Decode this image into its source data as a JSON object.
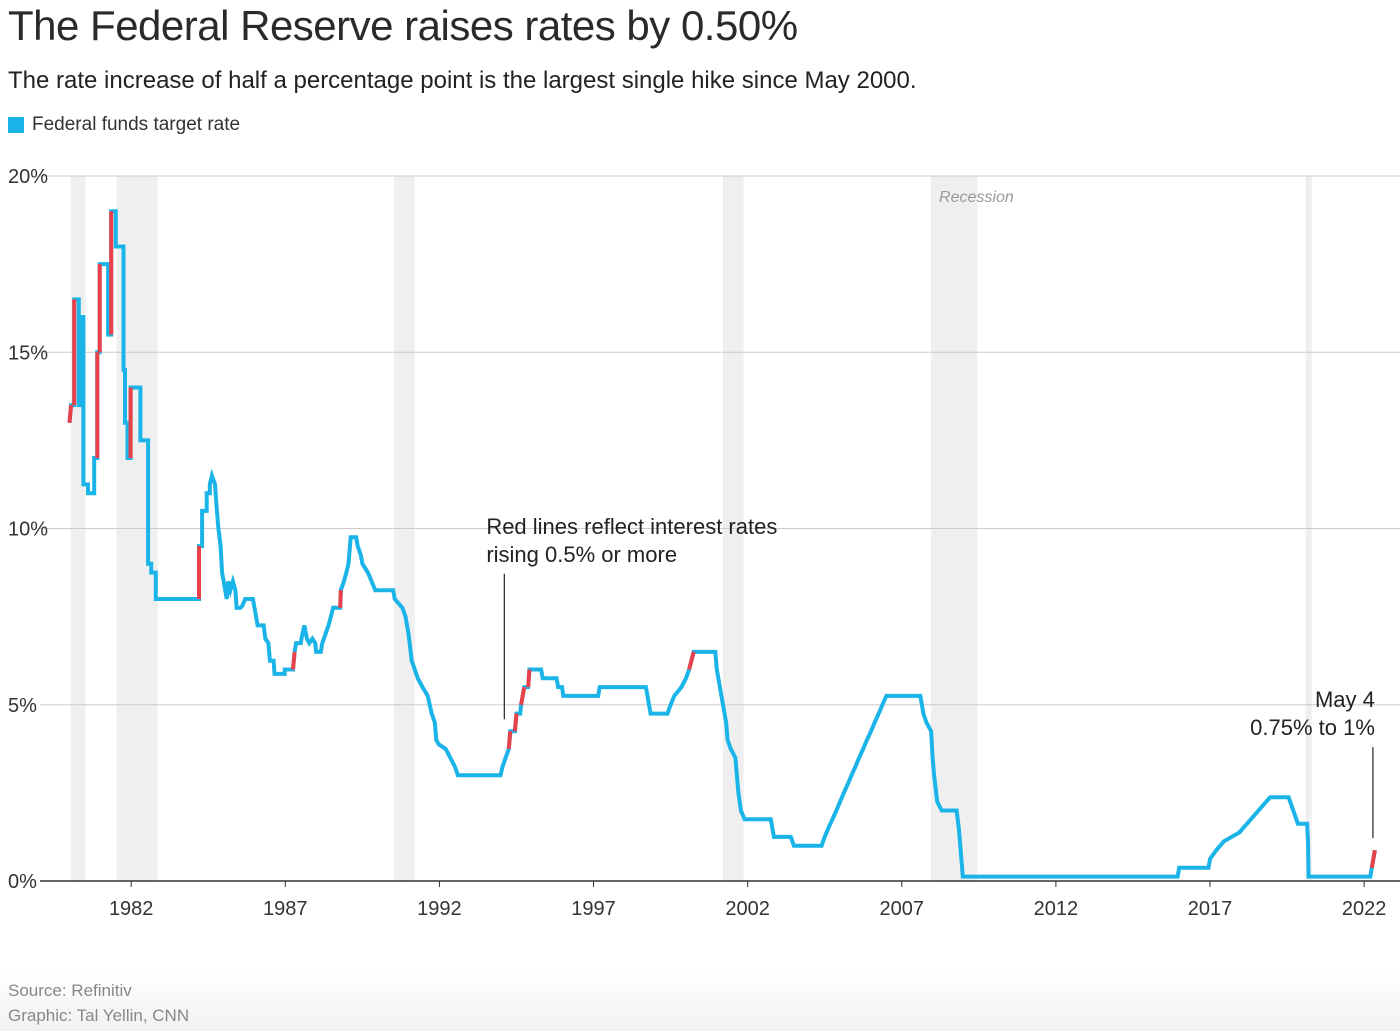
{
  "header": {
    "title": "The Federal Reserve raises rates by 0.50%",
    "subtitle": "The rate increase of half a percentage point is the largest single hike since May 2000.",
    "legend_label": "Federal funds target rate"
  },
  "footer": {
    "source": "Source: Refinitiv",
    "credit": "Graphic: Tal Yellin, CNN"
  },
  "colors": {
    "line": "#1ab4e8",
    "hike": "#e8414a",
    "recession": "#efefef",
    "grid": "#cccccc"
  },
  "chart_data": {
    "type": "line",
    "title": "The Federal Reserve raises rates by 0.50%",
    "xlim": [
      1979.95,
      2022.45
    ],
    "ylim": [
      0,
      20
    ],
    "x_ticks": [
      1982,
      1987,
      1992,
      1997,
      2002,
      2007,
      2012,
      2017,
      2022
    ],
    "x_tick_labels": [
      "1982",
      "1987",
      "1992",
      "1997",
      "2002",
      "2007",
      "2012",
      "2017",
      "2022"
    ],
    "y_ticks": [
      0,
      5,
      10,
      15,
      20
    ],
    "y_tick_labels": [
      "0%",
      "5%",
      "10%",
      "15%",
      "20%"
    ],
    "grid": true,
    "legend_position": "top-left",
    "recession_label": "Recession",
    "recessions": [
      [
        1980.04,
        1980.52
      ],
      [
        1981.53,
        1982.86
      ],
      [
        1990.53,
        1991.2
      ],
      [
        2001.2,
        2001.87
      ],
      [
        2007.95,
        2009.45
      ],
      [
        2020.1,
        2020.3
      ]
    ],
    "series": [
      {
        "name": "Federal funds target rate",
        "points": [
          [
            1980.0,
            13.0
          ],
          [
            1980.05,
            13.5
          ],
          [
            1980.15,
            13.5
          ],
          [
            1980.15,
            16.5
          ],
          [
            1980.3,
            16.5
          ],
          [
            1980.3,
            13.5
          ],
          [
            1980.4,
            13.5
          ],
          [
            1980.4,
            16.0
          ],
          [
            1980.45,
            16.0
          ],
          [
            1980.45,
            11.25
          ],
          [
            1980.6,
            11.25
          ],
          [
            1980.6,
            11.0
          ],
          [
            1980.8,
            11.0
          ],
          [
            1980.8,
            12.0
          ],
          [
            1980.9,
            12.0
          ],
          [
            1980.9,
            15.0
          ],
          [
            1980.98,
            15.0
          ],
          [
            1980.98,
            17.5
          ],
          [
            1981.25,
            17.5
          ],
          [
            1981.25,
            15.5
          ],
          [
            1981.35,
            15.5
          ],
          [
            1981.35,
            19.0
          ],
          [
            1981.5,
            19.0
          ],
          [
            1981.5,
            18.0
          ],
          [
            1981.75,
            18.0
          ],
          [
            1981.75,
            14.5
          ],
          [
            1981.8,
            14.5
          ],
          [
            1981.8,
            13.0
          ],
          [
            1981.88,
            13.0
          ],
          [
            1981.88,
            12.0
          ],
          [
            1981.98,
            12.0
          ],
          [
            1981.98,
            14.0
          ],
          [
            1982.3,
            14.0
          ],
          [
            1982.3,
            12.5
          ],
          [
            1982.55,
            12.5
          ],
          [
            1982.55,
            9.0
          ],
          [
            1982.65,
            9.0
          ],
          [
            1982.65,
            8.75
          ],
          [
            1982.8,
            8.75
          ],
          [
            1982.8,
            8.0
          ],
          [
            1984.2,
            8.0
          ],
          [
            1984.2,
            9.5
          ],
          [
            1984.3,
            9.5
          ],
          [
            1984.3,
            10.5
          ],
          [
            1984.45,
            10.5
          ],
          [
            1984.45,
            11.0
          ],
          [
            1984.55,
            11.0
          ],
          [
            1984.55,
            11.25
          ],
          [
            1984.62,
            11.5
          ],
          [
            1984.72,
            11.25
          ],
          [
            1984.78,
            10.5
          ],
          [
            1984.83,
            10.0
          ],
          [
            1984.9,
            9.5
          ],
          [
            1984.95,
            8.75
          ],
          [
            1985.0,
            8.5
          ],
          [
            1985.05,
            8.25
          ],
          [
            1985.1,
            8.0
          ],
          [
            1985.15,
            8.5
          ],
          [
            1985.22,
            8.25
          ],
          [
            1985.3,
            8.5
          ],
          [
            1985.38,
            8.25
          ],
          [
            1985.42,
            7.75
          ],
          [
            1985.55,
            7.75
          ],
          [
            1985.6,
            7.8
          ],
          [
            1985.7,
            8.0
          ],
          [
            1985.95,
            8.0
          ],
          [
            1986.0,
            7.75
          ],
          [
            1986.1,
            7.25
          ],
          [
            1986.3,
            7.25
          ],
          [
            1986.35,
            6.875
          ],
          [
            1986.45,
            6.75
          ],
          [
            1986.5,
            6.25
          ],
          [
            1986.62,
            6.25
          ],
          [
            1986.65,
            5.875
          ],
          [
            1986.98,
            5.875
          ],
          [
            1986.98,
            6.0
          ],
          [
            1987.25,
            6.0
          ],
          [
            1987.3,
            6.5
          ],
          [
            1987.35,
            6.75
          ],
          [
            1987.5,
            6.75
          ],
          [
            1987.55,
            7.0
          ],
          [
            1987.62,
            7.25
          ],
          [
            1987.7,
            6.875
          ],
          [
            1987.78,
            6.75
          ],
          [
            1987.88,
            6.875
          ],
          [
            1987.97,
            6.75
          ],
          [
            1988.0,
            6.5
          ],
          [
            1988.15,
            6.5
          ],
          [
            1988.2,
            6.75
          ],
          [
            1988.3,
            7.0
          ],
          [
            1988.4,
            7.25
          ],
          [
            1988.48,
            7.5
          ],
          [
            1988.55,
            7.75
          ],
          [
            1988.65,
            7.75
          ],
          [
            1988.78,
            7.75
          ],
          [
            1988.8,
            8.25
          ],
          [
            1988.9,
            8.5
          ],
          [
            1988.98,
            8.75
          ],
          [
            1989.05,
            9.0
          ],
          [
            1989.12,
            9.75
          ],
          [
            1989.3,
            9.75
          ],
          [
            1989.35,
            9.5
          ],
          [
            1989.45,
            9.25
          ],
          [
            1989.5,
            9.0
          ],
          [
            1989.68,
            8.75
          ],
          [
            1989.8,
            8.5
          ],
          [
            1989.92,
            8.25
          ],
          [
            1990.5,
            8.25
          ],
          [
            1990.55,
            8.0
          ],
          [
            1990.8,
            7.75
          ],
          [
            1990.9,
            7.5
          ],
          [
            1991.0,
            7.0
          ],
          [
            1991.1,
            6.25
          ],
          [
            1991.3,
            5.75
          ],
          [
            1991.45,
            5.5
          ],
          [
            1991.62,
            5.25
          ],
          [
            1991.75,
            4.75
          ],
          [
            1991.85,
            4.5
          ],
          [
            1991.9,
            4.0
          ],
          [
            1991.98,
            3.875
          ],
          [
            1992.2,
            3.75
          ],
          [
            1992.35,
            3.5
          ],
          [
            1992.5,
            3.25
          ],
          [
            1992.6,
            3.0
          ],
          [
            1993.98,
            3.0
          ],
          [
            1994.05,
            3.25
          ],
          [
            1994.15,
            3.5
          ],
          [
            1994.25,
            3.75
          ],
          [
            1994.3,
            4.25
          ],
          [
            1994.45,
            4.25
          ],
          [
            1994.5,
            4.75
          ],
          [
            1994.62,
            4.75
          ],
          [
            1994.65,
            5.0
          ],
          [
            1994.75,
            5.5
          ],
          [
            1994.88,
            5.5
          ],
          [
            1994.92,
            6.0
          ],
          [
            1995.3,
            6.0
          ],
          [
            1995.35,
            5.75
          ],
          [
            1995.8,
            5.75
          ],
          [
            1995.85,
            5.5
          ],
          [
            1995.98,
            5.5
          ],
          [
            1996.02,
            5.25
          ],
          [
            1997.15,
            5.25
          ],
          [
            1997.2,
            5.5
          ],
          [
            1998.7,
            5.5
          ],
          [
            1998.75,
            5.25
          ],
          [
            1998.8,
            5.0
          ],
          [
            1998.85,
            4.75
          ],
          [
            1999.4,
            4.75
          ],
          [
            1999.5,
            5.0
          ],
          [
            1999.62,
            5.25
          ],
          [
            1999.85,
            5.5
          ],
          [
            2000.0,
            5.75
          ],
          [
            2000.1,
            6.0
          ],
          [
            2000.25,
            6.5
          ],
          [
            2000.95,
            6.5
          ],
          [
            2001.0,
            6.0
          ],
          [
            2001.1,
            5.5
          ],
          [
            2001.2,
            5.0
          ],
          [
            2001.3,
            4.5
          ],
          [
            2001.35,
            4.0
          ],
          [
            2001.45,
            3.75
          ],
          [
            2001.6,
            3.5
          ],
          [
            2001.65,
            3.0
          ],
          [
            2001.7,
            2.5
          ],
          [
            2001.78,
            2.0
          ],
          [
            2001.9,
            1.75
          ],
          [
            2002.75,
            1.75
          ],
          [
            2002.85,
            1.25
          ],
          [
            2003.4,
            1.25
          ],
          [
            2003.5,
            1.0
          ],
          [
            2004.4,
            1.0
          ],
          [
            2004.5,
            1.25
          ],
          [
            2004.62,
            1.5
          ],
          [
            2004.75,
            1.75
          ],
          [
            2004.88,
            2.0
          ],
          [
            2005.0,
            2.25
          ],
          [
            2005.12,
            2.5
          ],
          [
            2005.25,
            2.75
          ],
          [
            2005.37,
            3.0
          ],
          [
            2005.5,
            3.25
          ],
          [
            2005.62,
            3.5
          ],
          [
            2005.75,
            3.75
          ],
          [
            2005.87,
            4.0
          ],
          [
            2006.0,
            4.25
          ],
          [
            2006.12,
            4.5
          ],
          [
            2006.25,
            4.75
          ],
          [
            2006.37,
            5.0
          ],
          [
            2006.5,
            5.25
          ],
          [
            2007.6,
            5.25
          ],
          [
            2007.7,
            4.75
          ],
          [
            2007.8,
            4.5
          ],
          [
            2007.95,
            4.25
          ],
          [
            2008.0,
            3.5
          ],
          [
            2008.05,
            3.0
          ],
          [
            2008.15,
            2.25
          ],
          [
            2008.3,
            2.0
          ],
          [
            2008.78,
            2.0
          ],
          [
            2008.85,
            1.5
          ],
          [
            2008.9,
            1.0
          ],
          [
            2008.98,
            0.125
          ],
          [
            2015.95,
            0.125
          ],
          [
            2016.0,
            0.375
          ],
          [
            2016.95,
            0.375
          ],
          [
            2017.0,
            0.625
          ],
          [
            2017.2,
            0.875
          ],
          [
            2017.45,
            1.125
          ],
          [
            2017.95,
            1.375
          ],
          [
            2018.2,
            1.625
          ],
          [
            2018.45,
            1.875
          ],
          [
            2018.7,
            2.125
          ],
          [
            2018.95,
            2.375
          ],
          [
            2019.55,
            2.375
          ],
          [
            2019.65,
            2.125
          ],
          [
            2019.75,
            1.875
          ],
          [
            2019.85,
            1.625
          ],
          [
            2020.15,
            1.625
          ],
          [
            2020.18,
            1.125
          ],
          [
            2020.2,
            0.125
          ],
          [
            2022.2,
            0.125
          ],
          [
            2022.25,
            0.375
          ],
          [
            2022.35,
            0.875
          ]
        ]
      }
    ],
    "hikes": [
      [
        [
          1980.0,
          13.0
        ],
        [
          1980.05,
          13.5
        ]
      ],
      [
        [
          1980.15,
          13.5
        ],
        [
          1980.15,
          16.5
        ]
      ],
      [
        [
          1980.9,
          12.0
        ],
        [
          1980.9,
          15.0
        ]
      ],
      [
        [
          1980.98,
          15.0
        ],
        [
          1980.98,
          17.5
        ]
      ],
      [
        [
          1981.35,
          15.5
        ],
        [
          1981.35,
          19.0
        ]
      ],
      [
        [
          1981.98,
          12.0
        ],
        [
          1981.98,
          14.0
        ]
      ],
      [
        [
          1984.2,
          8.0
        ],
        [
          1984.2,
          9.5
        ]
      ],
      [
        [
          1987.25,
          6.0
        ],
        [
          1987.3,
          6.5
        ]
      ],
      [
        [
          1988.78,
          7.75
        ],
        [
          1988.8,
          8.25
        ]
      ],
      [
        [
          1994.25,
          3.75
        ],
        [
          1994.3,
          4.25
        ]
      ],
      [
        [
          1994.45,
          4.25
        ],
        [
          1994.5,
          4.75
        ]
      ],
      [
        [
          1994.65,
          5.0
        ],
        [
          1994.75,
          5.5
        ]
      ],
      [
        [
          1994.88,
          5.5
        ],
        [
          1994.92,
          6.0
        ]
      ],
      [
        [
          2000.1,
          6.0
        ],
        [
          2000.25,
          6.5
        ]
      ],
      [
        [
          2022.25,
          0.375
        ],
        [
          2022.35,
          0.875
        ]
      ]
    ],
    "annotations": [
      {
        "lines": [
          "Red lines reflect interest rates",
          "rising 0.5% or more"
        ],
        "target": [
          1994.3,
          4.25
        ],
        "align": "start"
      },
      {
        "lines": [
          "May 4",
          "0.75% to 1%"
        ],
        "target": [
          2022.35,
          0.875
        ],
        "align": "end"
      }
    ]
  }
}
